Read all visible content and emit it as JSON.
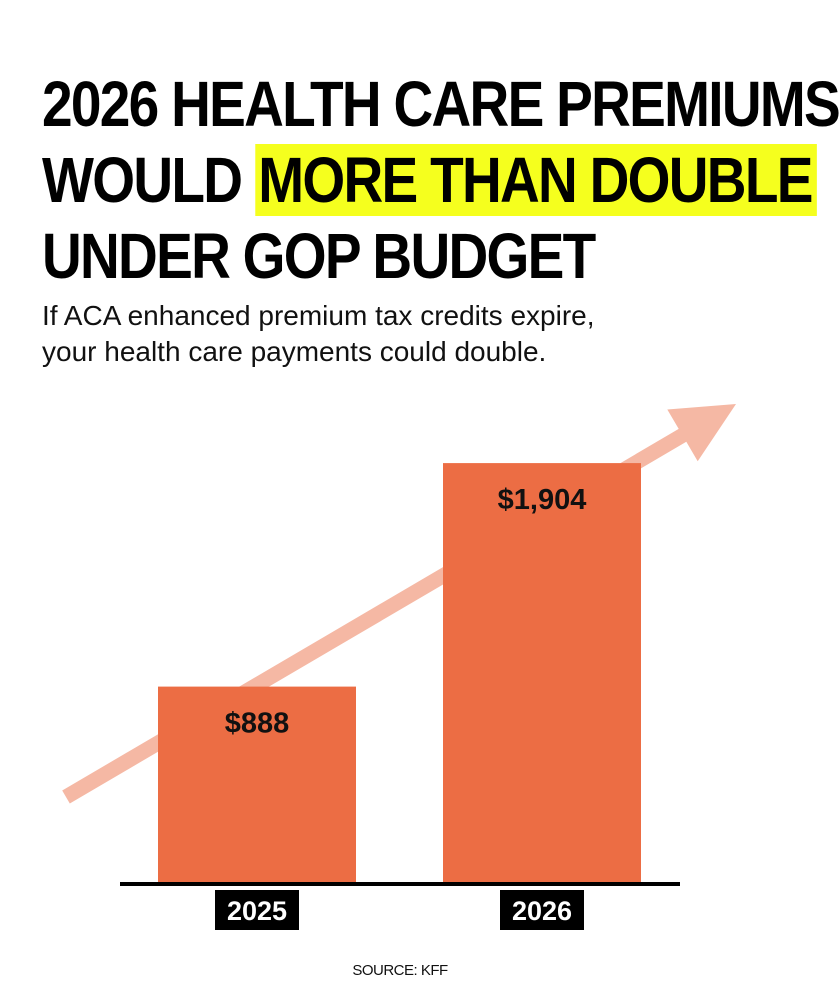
{
  "headline": {
    "line1": "2026 HEALTH CARE PREMIUMS",
    "line2_pre": "WOULD ",
    "line2_highlight": "MORE THAN DOUBLE",
    "line3": "UNDER GOP BUDGET"
  },
  "subtitle": {
    "line1": "If ACA enhanced premium tax credits expire,",
    "line2": "your health care payments could double."
  },
  "chart_data": {
    "type": "bar",
    "categories": [
      "2025",
      "2026"
    ],
    "values": [
      888,
      1904
    ],
    "value_labels": [
      "$888",
      "$1,904"
    ],
    "ylim": [
      0,
      2000
    ],
    "grid": false,
    "legend": "none",
    "trend_arrow": "rising"
  },
  "colors": {
    "bar": "#ec6d44",
    "arrow": "#f5b8a4",
    "highlight": "#f5ff1e",
    "axis": "#000000",
    "category_label_bg": "#000000",
    "category_label_text": "#ffffff"
  },
  "source": "SOURCE: KFF"
}
